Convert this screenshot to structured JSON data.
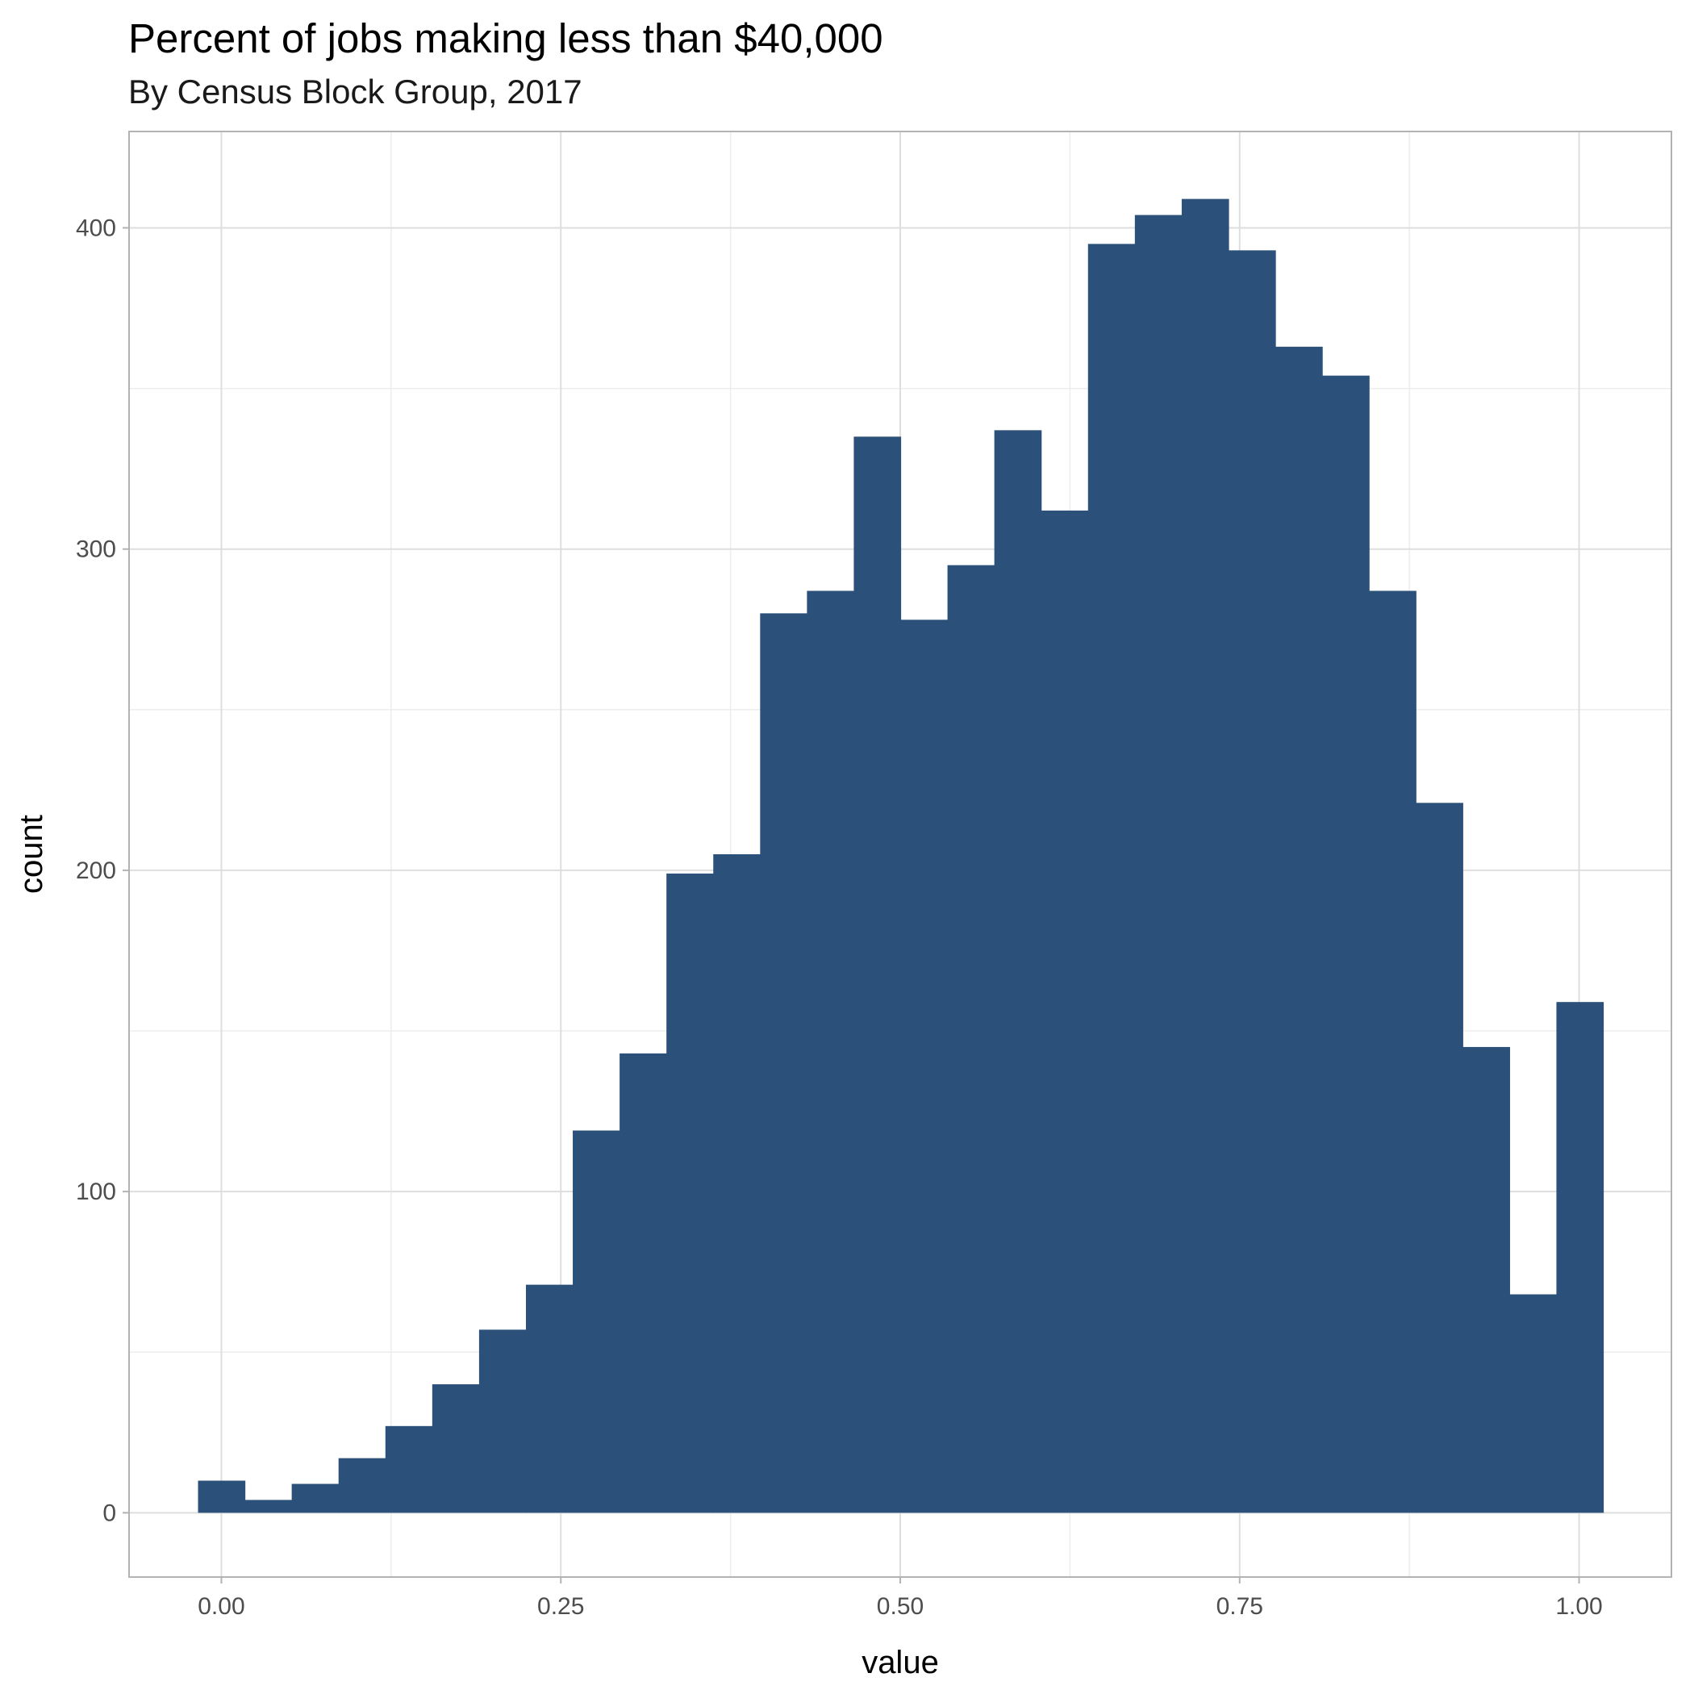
{
  "chart_data": {
    "type": "bar",
    "title": "Percent of jobs making less than $40,000",
    "subtitle": "By Census Block Group, 2017",
    "xlabel": "value",
    "ylabel": "count",
    "xlim": [
      -0.068,
      1.068
    ],
    "ylim": [
      -20,
      430
    ],
    "x_ticks": [
      0.0,
      0.25,
      0.5,
      0.75,
      1.0
    ],
    "x_tick_labels": [
      "0.00",
      "0.25",
      "0.50",
      "0.75",
      "1.00"
    ],
    "y_ticks": [
      0,
      100,
      200,
      300,
      400
    ],
    "y_tick_labels": [
      "0",
      "100",
      "200",
      "300",
      "400"
    ],
    "grid": true,
    "bar_color": "#2b5079",
    "bins": {
      "start": -0.0172,
      "width": 0.0345,
      "counts": [
        10,
        4,
        9,
        17,
        27,
        40,
        57,
        71,
        119,
        143,
        199,
        205,
        280,
        287,
        335,
        278,
        295,
        337,
        312,
        395,
        404,
        409,
        393,
        363,
        354,
        287,
        221,
        145,
        68,
        159
      ]
    }
  }
}
